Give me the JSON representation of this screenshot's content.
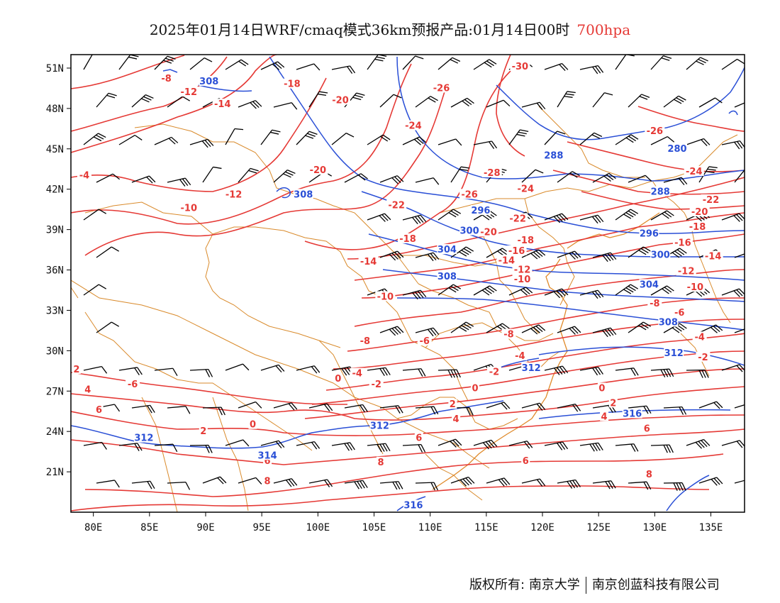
{
  "title": {
    "main": "2025年01月14日WRF/cmaq模式36km预报产品:01月14日00时",
    "level": "700hpa"
  },
  "axes": {
    "lon_labels": [
      "80E",
      "85E",
      "90E",
      "95E",
      "100E",
      "105E",
      "110E",
      "115E",
      "120E",
      "125E",
      "130E",
      "135E"
    ],
    "lat_labels": [
      "51N",
      "48N",
      "45N",
      "42N",
      "39N",
      "36N",
      "33N",
      "30N",
      "27N",
      "24N",
      "21N"
    ]
  },
  "map_extent": {
    "lon_min": 78,
    "lon_max": 138,
    "lat_min": 18,
    "lat_max": 52
  },
  "colors": {
    "temperature": "#e53935",
    "height": "#2a4fd6",
    "border": "#d98a2b",
    "wind": "#000000"
  },
  "temperature_labels": [
    {
      "text": "-8",
      "lon": 86.5,
      "lat": 50.2
    },
    {
      "text": "-12",
      "lon": 88.5,
      "lat": 49.2
    },
    {
      "text": "-14",
      "lon": 91.5,
      "lat": 48.3
    },
    {
      "text": "-18",
      "lon": 97.7,
      "lat": 49.8
    },
    {
      "text": "-20",
      "lon": 102,
      "lat": 48.6
    },
    {
      "text": "-26",
      "lon": 111,
      "lat": 49.5
    },
    {
      "text": "-30",
      "lon": 118,
      "lat": 51.1
    },
    {
      "text": "-24",
      "lon": 108.5,
      "lat": 46.7
    },
    {
      "text": "-26",
      "lon": 130,
      "lat": 46.3
    },
    {
      "text": "-24",
      "lon": 133.5,
      "lat": 43.3
    },
    {
      "text": "-20",
      "lon": 100,
      "lat": 43.4
    },
    {
      "text": "-28",
      "lon": 115.5,
      "lat": 43.2
    },
    {
      "text": "-26",
      "lon": 113.5,
      "lat": 41.6
    },
    {
      "text": "-24",
      "lon": 118.5,
      "lat": 42.0
    },
    {
      "text": "-22",
      "lon": 135,
      "lat": 41.2
    },
    {
      "text": "-20",
      "lon": 134,
      "lat": 40.3
    },
    {
      "text": "-18",
      "lon": 133.8,
      "lat": 39.2
    },
    {
      "text": "-16",
      "lon": 132.5,
      "lat": 38.0
    },
    {
      "text": "-14",
      "lon": 135.2,
      "lat": 37.0
    },
    {
      "text": "-12",
      "lon": 132.8,
      "lat": 35.9
    },
    {
      "text": "-10",
      "lon": 133.6,
      "lat": 34.7
    },
    {
      "text": "-8",
      "lon": 130,
      "lat": 33.5
    },
    {
      "text": "-6",
      "lon": 132.2,
      "lat": 32.8
    },
    {
      "text": "-4",
      "lon": 134,
      "lat": 31.0
    },
    {
      "text": "-2",
      "lon": 134.3,
      "lat": 29.5
    },
    {
      "text": "-22",
      "lon": 107,
      "lat": 40.8
    },
    {
      "text": "-22",
      "lon": 117.8,
      "lat": 39.8
    },
    {
      "text": "-20",
      "lon": 115.2,
      "lat": 38.8
    },
    {
      "text": "-18",
      "lon": 118.5,
      "lat": 38.2
    },
    {
      "text": "-16",
      "lon": 117.7,
      "lat": 37.4
    },
    {
      "text": "-14",
      "lon": 116.8,
      "lat": 36.7
    },
    {
      "text": "-12",
      "lon": 118.2,
      "lat": 36.0
    },
    {
      "text": "-10",
      "lon": 118.2,
      "lat": 35.3
    },
    {
      "text": "-18",
      "lon": 108,
      "lat": 38.3
    },
    {
      "text": "-14",
      "lon": 104.5,
      "lat": 36.6
    },
    {
      "text": "-10",
      "lon": 106,
      "lat": 34.0
    },
    {
      "text": "-8",
      "lon": 117,
      "lat": 31.2
    },
    {
      "text": "-6",
      "lon": 109.5,
      "lat": 30.7
    },
    {
      "text": "-4",
      "lon": 118,
      "lat": 29.6
    },
    {
      "text": "-2",
      "lon": 115.7,
      "lat": 28.4
    },
    {
      "text": "-4",
      "lon": 103.5,
      "lat": 28.3
    },
    {
      "text": "-2",
      "lon": 105.2,
      "lat": 27.5
    },
    {
      "text": "0",
      "lon": 101.8,
      "lat": 27.9
    },
    {
      "text": "0",
      "lon": 114,
      "lat": 27.2
    },
    {
      "text": "2",
      "lon": 112,
      "lat": 26.0
    },
    {
      "text": "4",
      "lon": 112.3,
      "lat": 24.9
    },
    {
      "text": "6",
      "lon": 109,
      "lat": 23.5
    },
    {
      "text": "8",
      "lon": 105.6,
      "lat": 21.7
    },
    {
      "text": "6",
      "lon": 118.5,
      "lat": 21.8
    },
    {
      "text": "0",
      "lon": 125.3,
      "lat": 27.2
    },
    {
      "text": "2",
      "lon": 126.3,
      "lat": 26.1
    },
    {
      "text": "4",
      "lon": 125.5,
      "lat": 25.1
    },
    {
      "text": "6",
      "lon": 129.3,
      "lat": 24.2
    },
    {
      "text": "8",
      "lon": 129.5,
      "lat": 20.8
    },
    {
      "text": "-4",
      "lon": 79.2,
      "lat": 43.0
    },
    {
      "text": "-10",
      "lon": 88.5,
      "lat": 40.6
    },
    {
      "text": "-12",
      "lon": 92.5,
      "lat": 41.6
    },
    {
      "text": "2",
      "lon": 78.5,
      "lat": 28.6
    },
    {
      "text": "4",
      "lon": 79.5,
      "lat": 27.1
    },
    {
      "text": "6",
      "lon": 80.5,
      "lat": 25.6
    },
    {
      "text": "2",
      "lon": 89.8,
      "lat": 24.0
    },
    {
      "text": "0",
      "lon": 94.2,
      "lat": 24.5
    },
    {
      "text": "6",
      "lon": 95.5,
      "lat": 21.8
    },
    {
      "text": "8",
      "lon": 95.5,
      "lat": 20.3
    },
    {
      "text": "-6",
      "lon": 83.5,
      "lat": 27.5
    },
    {
      "text": "-8",
      "lon": 104.2,
      "lat": 30.7
    }
  ],
  "height_labels": [
    {
      "text": "308",
      "lon": 90.3,
      "lat": 50.0
    },
    {
      "text": "308",
      "lon": 98.7,
      "lat": 41.6
    },
    {
      "text": "288",
      "lon": 121,
      "lat": 44.5
    },
    {
      "text": "280",
      "lon": 132,
      "lat": 45.0
    },
    {
      "text": "288",
      "lon": 130.5,
      "lat": 41.8
    },
    {
      "text": "296",
      "lon": 114.5,
      "lat": 40.4
    },
    {
      "text": "300",
      "lon": 113.5,
      "lat": 38.9
    },
    {
      "text": "304",
      "lon": 111.5,
      "lat": 37.5
    },
    {
      "text": "308",
      "lon": 111.5,
      "lat": 35.5
    },
    {
      "text": "296",
      "lon": 129.5,
      "lat": 38.7
    },
    {
      "text": "300",
      "lon": 130.5,
      "lat": 37.1
    },
    {
      "text": "304",
      "lon": 129.5,
      "lat": 34.9
    },
    {
      "text": "308",
      "lon": 131.2,
      "lat": 32.1
    },
    {
      "text": "312",
      "lon": 131.7,
      "lat": 29.8
    },
    {
      "text": "312",
      "lon": 119,
      "lat": 28.7
    },
    {
      "text": "316",
      "lon": 128,
      "lat": 25.3
    },
    {
      "text": "312",
      "lon": 84.5,
      "lat": 23.5
    },
    {
      "text": "312",
      "lon": 105.5,
      "lat": 24.4
    },
    {
      "text": "314",
      "lon": 95.5,
      "lat": 22.2
    },
    {
      "text": "316",
      "lon": 108.5,
      "lat": 18.5
    }
  ],
  "copyright": {
    "owner_label": "版权所有:",
    "org1": "南京大学",
    "org2": "南京创蓝科技有限公司"
  }
}
